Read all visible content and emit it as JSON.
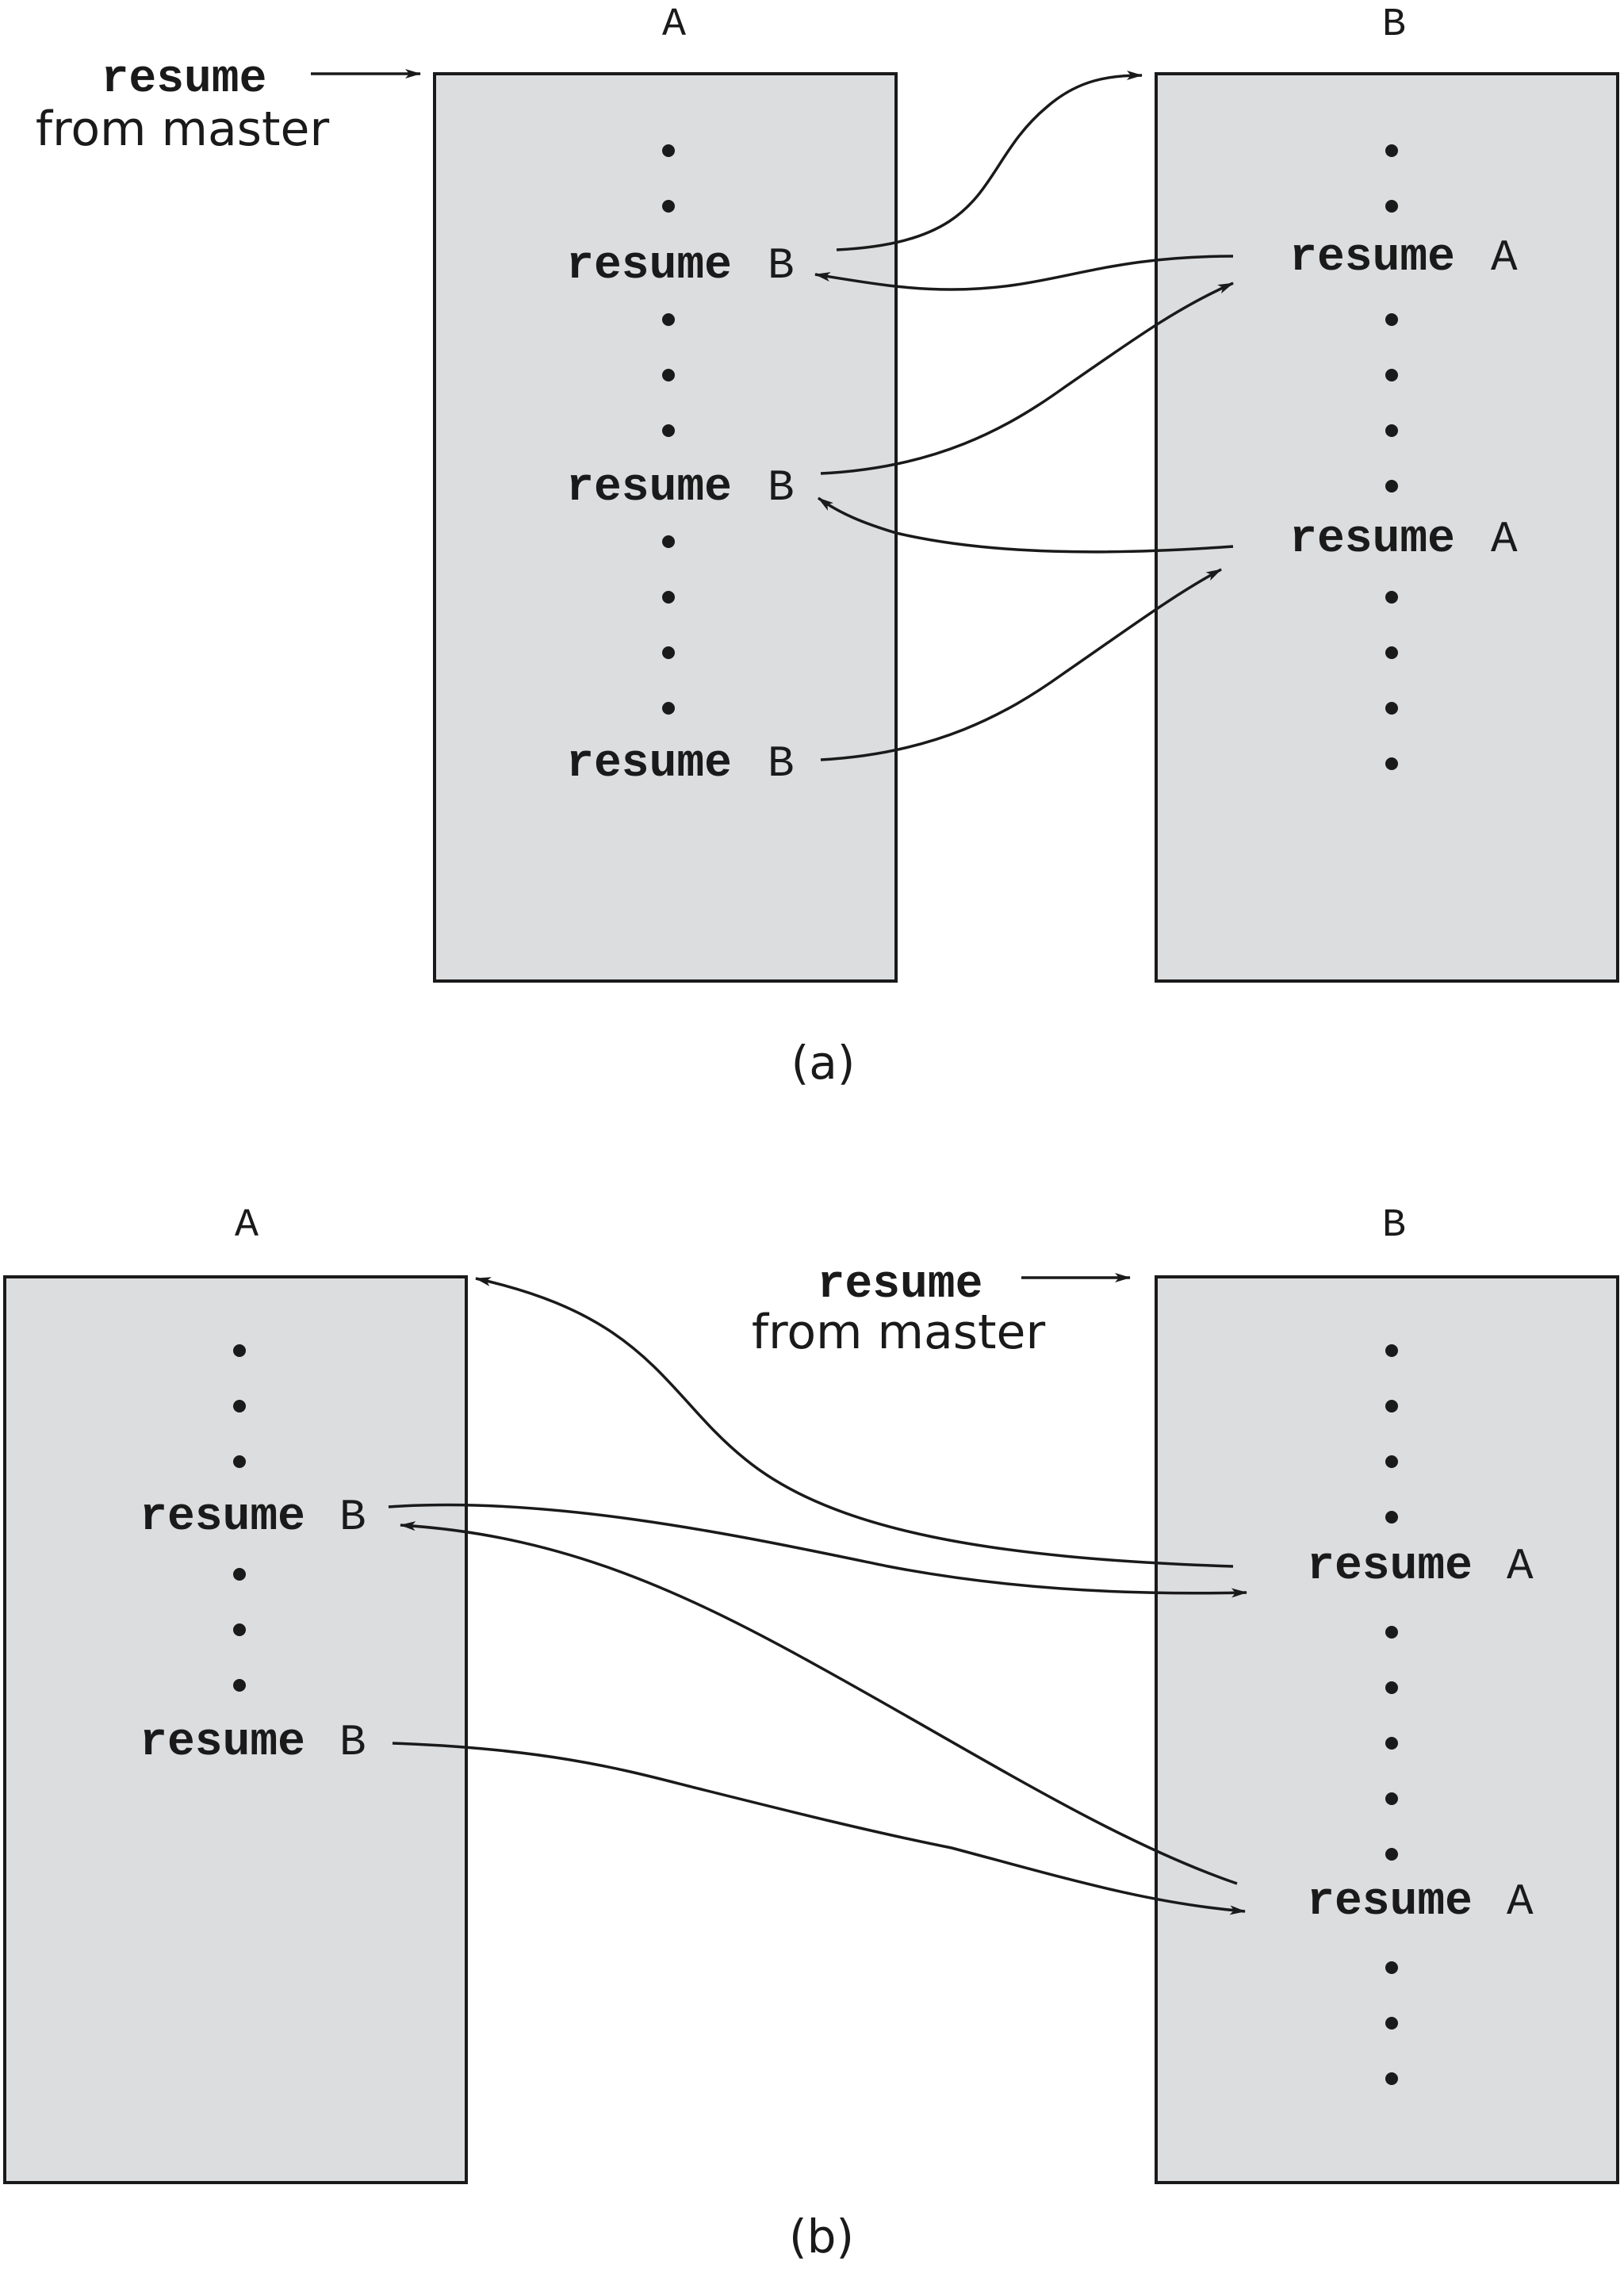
{
  "diagram": {
    "panel_a": {
      "caption": "(a)",
      "routine_a": {
        "title": "A",
        "stmt_keyword": "resume",
        "stmt_target": "B"
      },
      "routine_b": {
        "title": "B",
        "stmt_keyword": "resume",
        "stmt_target": "A"
      },
      "entry": {
        "keyword": "resume",
        "text": "from master"
      }
    },
    "panel_b": {
      "caption": "(b)",
      "routine_a": {
        "title": "A",
        "stmt_keyword": "resume",
        "stmt_target": "B"
      },
      "routine_b": {
        "title": "B",
        "stmt_keyword": "resume",
        "stmt_target": "A"
      },
      "entry": {
        "keyword": "resume",
        "text": "from master"
      }
    }
  },
  "colors": {
    "box_fill": "#dcdddf",
    "ink": "#1a1a1a"
  }
}
